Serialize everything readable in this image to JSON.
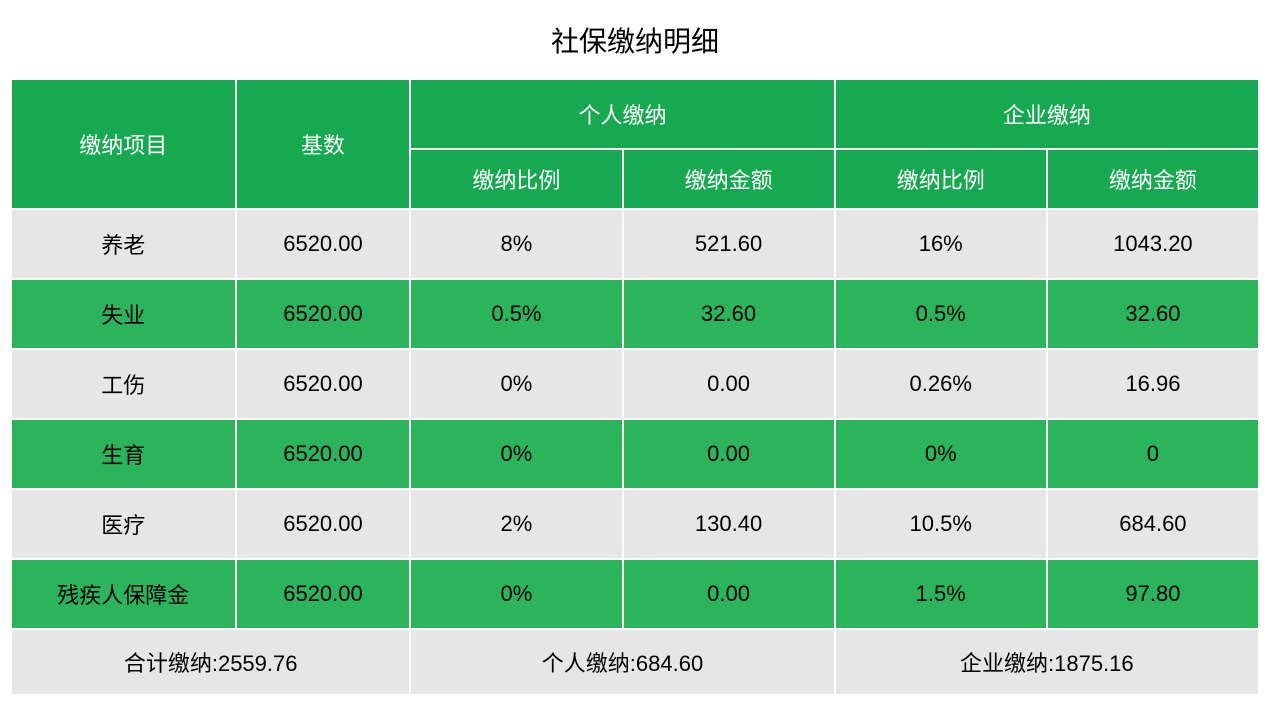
{
  "title": "社保缴纳明细",
  "colors": {
    "header_bg": "#16a950",
    "row_alt_a": "#e6e6e6",
    "row_alt_b": "#2bb45c",
    "totals_bg": "#e6e6e6",
    "border": "#ffffff",
    "header_text": "#ffffff",
    "body_text": "#000000"
  },
  "header": {
    "item": "缴纳项目",
    "base": "基数",
    "personal": "个人缴纳",
    "company": "企业缴纳",
    "ratio": "缴纳比例",
    "amount": "缴纳金额"
  },
  "rows": [
    {
      "item": "养老",
      "base": "6520.00",
      "p_ratio": "8%",
      "p_amt": "521.60",
      "c_ratio": "16%",
      "c_amt": "1043.20"
    },
    {
      "item": "失业",
      "base": "6520.00",
      "p_ratio": "0.5%",
      "p_amt": "32.60",
      "c_ratio": "0.5%",
      "c_amt": "32.60"
    },
    {
      "item": "工伤",
      "base": "6520.00",
      "p_ratio": "0%",
      "p_amt": "0.00",
      "c_ratio": "0.26%",
      "c_amt": "16.96"
    },
    {
      "item": "生育",
      "base": "6520.00",
      "p_ratio": "0%",
      "p_amt": "0.00",
      "c_ratio": "0%",
      "c_amt": "0"
    },
    {
      "item": "医疗",
      "base": "6520.00",
      "p_ratio": "2%",
      "p_amt": "130.40",
      "c_ratio": "10.5%",
      "c_amt": "684.60"
    },
    {
      "item": "残疾人保障金",
      "base": "6520.00",
      "p_ratio": "0%",
      "p_amt": "0.00",
      "c_ratio": "1.5%",
      "c_amt": "97.80"
    }
  ],
  "totals": {
    "total": "合计缴纳:2559.76",
    "personal": "个人缴纳:684.60",
    "company": "企业缴纳:1875.16"
  },
  "layout": {
    "col_widths_pct": [
      18,
      14,
      17,
      17,
      17,
      17
    ]
  }
}
